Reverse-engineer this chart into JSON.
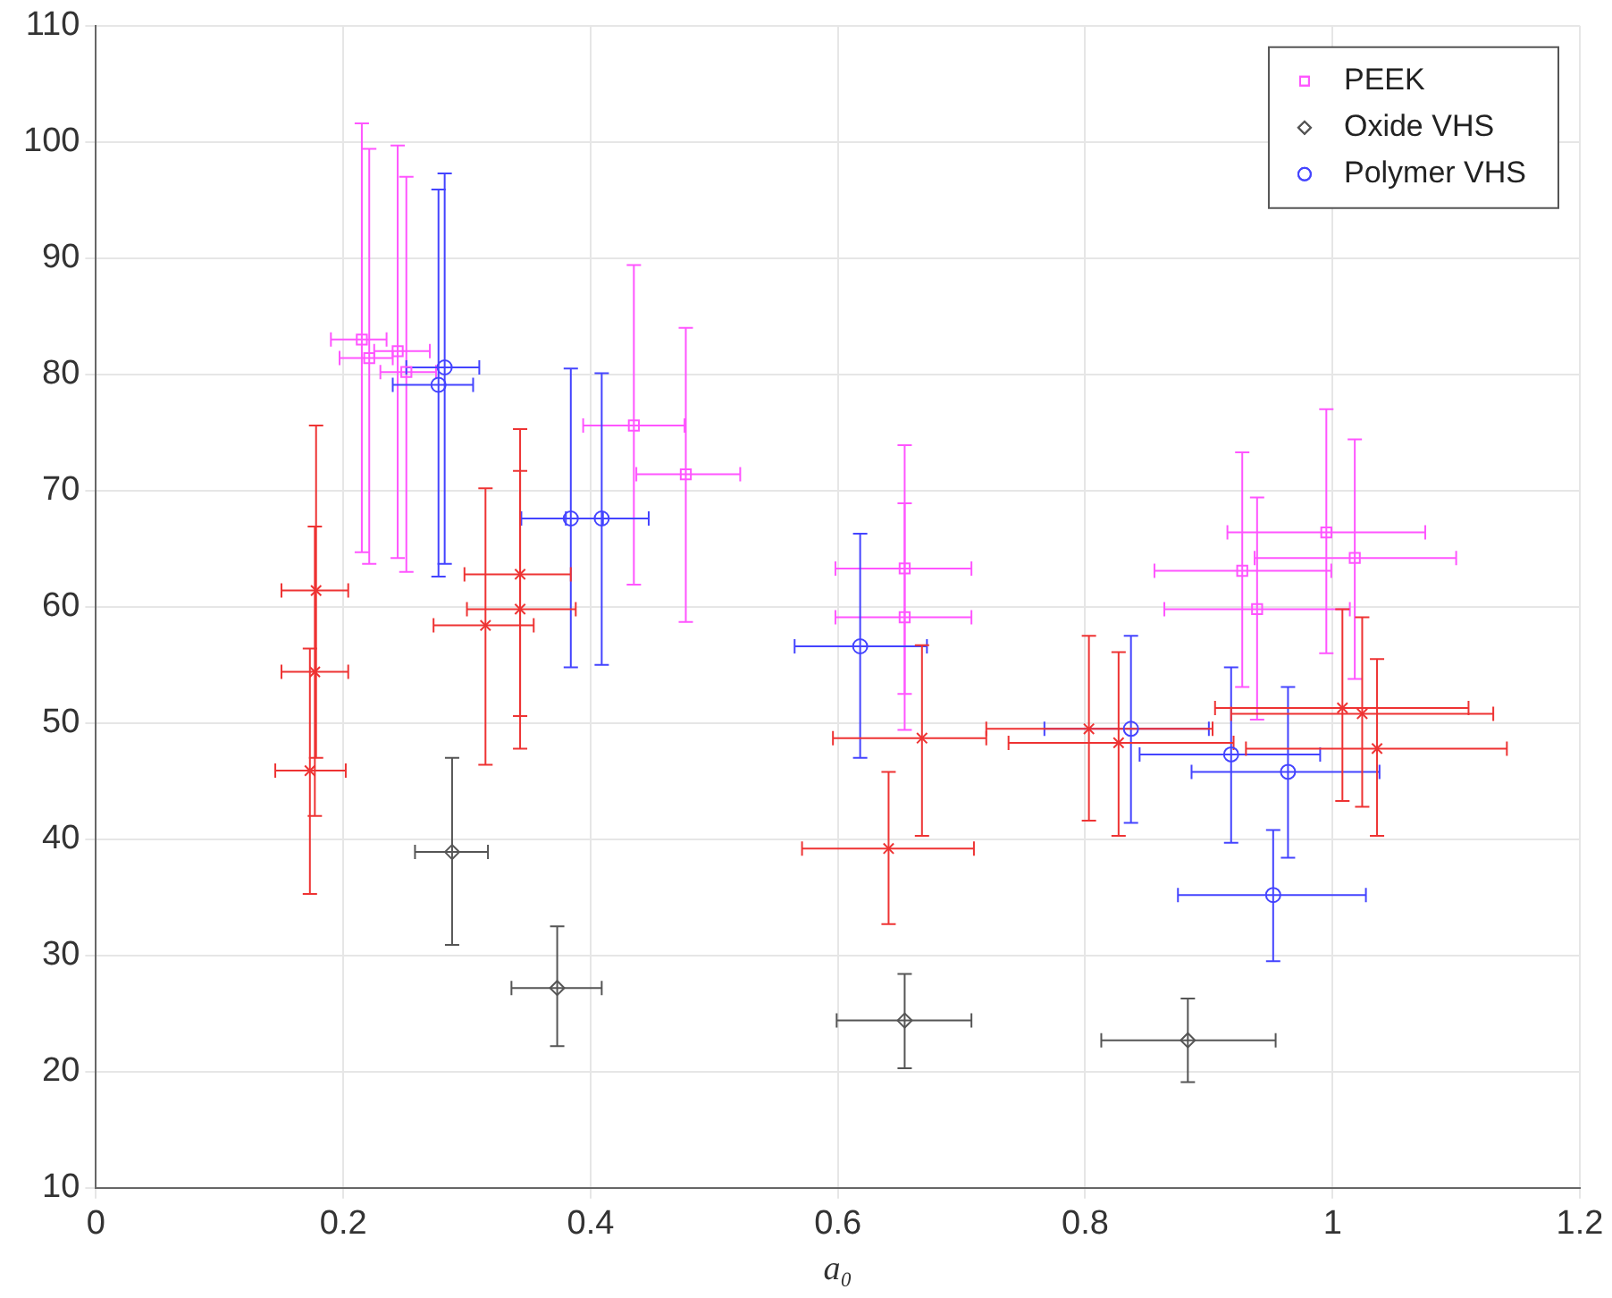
{
  "chart_data": {
    "type": "scatter",
    "xlabel": "a₀",
    "xlim": [
      0,
      1.2
    ],
    "xticks": [
      0,
      0.2,
      0.4,
      0.6,
      0.8,
      1,
      1.2
    ],
    "ylim": [
      10,
      110
    ],
    "yticks": [
      10,
      20,
      30,
      40,
      50,
      60,
      70,
      80,
      90,
      100,
      110
    ],
    "grid": true,
    "legend": "top right",
    "series": [
      {
        "name": "PEEK",
        "color": "#ff55ff",
        "marker": "square",
        "x": [
          0.215,
          0.221,
          0.244,
          0.251,
          0.435,
          0.477,
          0.654,
          0.654,
          0.927,
          0.939,
          0.995,
          1.018
        ],
        "values": [
          83,
          81.4,
          82,
          80.2,
          75.6,
          71.4,
          63.3,
          59.1,
          63.1,
          59.8,
          66.4,
          64.2
        ],
        "errors": [
          [
            64.7,
            101.6
          ],
          [
            63.7,
            99.4
          ],
          [
            64.2,
            99.7
          ],
          [
            63,
            97
          ],
          [
            61.9,
            89.4
          ],
          [
            58.7,
            84
          ],
          [
            52.5,
            73.9
          ],
          [
            49.4,
            68.9
          ],
          [
            53.1,
            73.3
          ],
          [
            50.3,
            69.4
          ],
          [
            56,
            77
          ],
          [
            53.8,
            74.4
          ]
        ],
        "xerrors": [
          [
            0.19,
            0.235
          ],
          [
            0.197,
            0.24
          ],
          [
            0.225,
            0.27
          ],
          [
            0.23,
            0.275
          ],
          [
            0.394,
            0.476
          ],
          [
            0.437,
            0.521
          ],
          [
            0.598,
            0.708
          ],
          [
            0.598,
            0.708
          ],
          [
            0.856,
            0.999
          ],
          [
            0.864,
            1.014
          ],
          [
            0.915,
            1.075
          ],
          [
            0.937,
            1.1
          ]
        ]
      },
      {
        "name": "Oxide VHS",
        "color": "#555555",
        "marker": "diamond",
        "x": [
          0.288,
          0.373,
          0.654,
          0.883
        ],
        "values": [
          38.9,
          27.2,
          24.4,
          22.7
        ],
        "errors": [
          [
            30.9,
            47
          ],
          [
            22.2,
            32.5
          ],
          [
            20.3,
            28.4
          ],
          [
            19.1,
            26.3
          ]
        ],
        "xerrors": [
          [
            0.258,
            0.317
          ],
          [
            0.336,
            0.409
          ],
          [
            0.599,
            0.708
          ],
          [
            0.813,
            0.954
          ]
        ]
      },
      {
        "name": "Polymer VHS",
        "color": "#4444ff",
        "marker": "circle",
        "x": [
          0.282,
          0.277,
          0.384,
          0.409,
          0.618,
          0.837,
          0.918,
          0.964,
          0.952
        ],
        "values": [
          80.6,
          79.1,
          67.6,
          67.6,
          56.6,
          49.5,
          47.3,
          45.8,
          35.2
        ],
        "errors": [
          [
            63.7,
            97.3
          ],
          [
            62.6,
            95.9
          ],
          [
            54.8,
            80.5
          ],
          [
            55,
            80.1
          ],
          [
            47,
            66.3
          ],
          [
            41.4,
            57.5
          ],
          [
            39.7,
            54.8
          ],
          [
            38.4,
            53.1
          ],
          [
            29.5,
            40.8
          ]
        ],
        "xerrors": [
          [
            0.251,
            0.31
          ],
          [
            0.24,
            0.305
          ],
          [
            0.344,
            0.41
          ],
          [
            0.38,
            0.447
          ],
          [
            0.565,
            0.672
          ],
          [
            0.767,
            0.9
          ],
          [
            0.844,
            0.99
          ],
          [
            0.886,
            1.038
          ],
          [
            0.875,
            1.027
          ]
        ]
      },
      {
        "color": "#ee3333",
        "marker": "cross",
        "x": [
          0.178,
          0.177,
          0.173,
          0.315,
          0.343,
          0.343,
          0.641,
          0.668,
          0.803,
          0.827,
          1.008,
          1.024,
          1.036
        ],
        "values": [
          61.4,
          54.4,
          45.9,
          58.4,
          62.8,
          59.8,
          39.2,
          48.7,
          49.5,
          48.3,
          51.3,
          50.8,
          47.8
        ],
        "errors": [
          [
            47,
            75.6
          ],
          [
            42,
            66.9
          ],
          [
            35.3,
            56.4
          ],
          [
            46.4,
            70.2
          ],
          [
            50.6,
            75.3
          ],
          [
            47.8,
            71.7
          ],
          [
            32.7,
            45.8
          ],
          [
            40.3,
            56.7
          ],
          [
            41.6,
            57.5
          ],
          [
            40.3,
            56.1
          ],
          [
            43.3,
            59.8
          ],
          [
            42.8,
            59.1
          ],
          [
            40.3,
            55.5
          ]
        ],
        "xerrors": [
          [
            0.15,
            0.204
          ],
          [
            0.15,
            0.204
          ],
          [
            0.145,
            0.202
          ],
          [
            0.273,
            0.354
          ],
          [
            0.298,
            0.384
          ],
          [
            0.3,
            0.388
          ],
          [
            0.571,
            0.71
          ],
          [
            0.596,
            0.72
          ],
          [
            0.72,
            0.903
          ],
          [
            0.738,
            0.92
          ],
          [
            0.905,
            1.11
          ],
          [
            0.918,
            1.13
          ],
          [
            0.93,
            1.141
          ]
        ]
      }
    ]
  }
}
